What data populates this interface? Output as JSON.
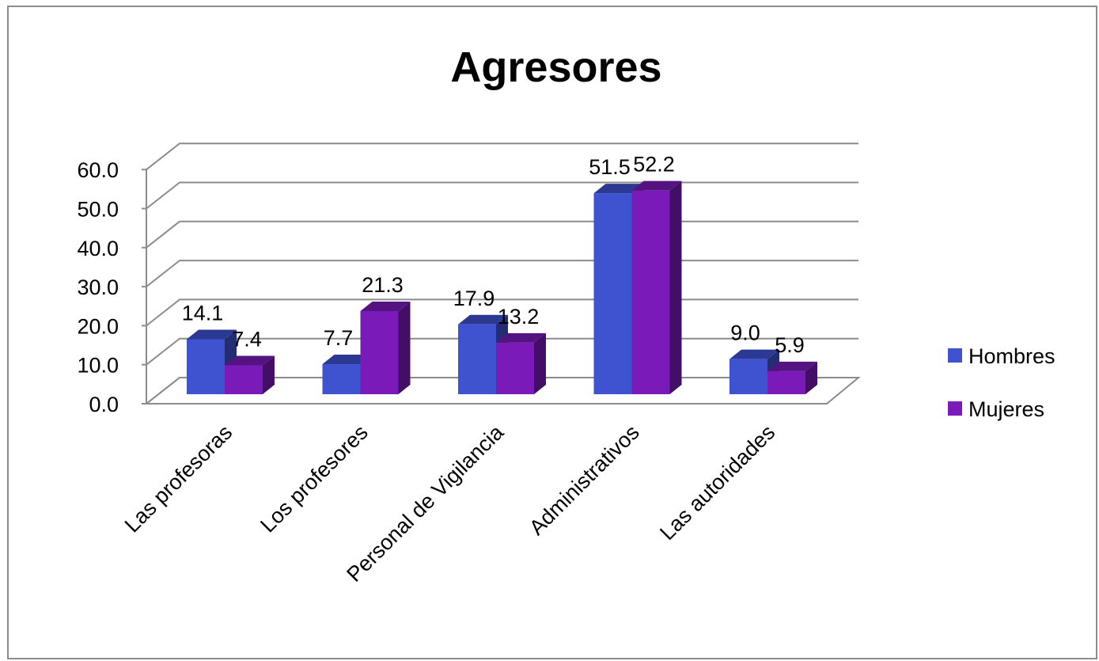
{
  "chart_data": {
    "type": "bar",
    "title": "Agresores",
    "categories": [
      "Las profesoras",
      "Los profesores",
      "Personal de Vigilancia",
      "Administrativos",
      "Las autoridades"
    ],
    "series": [
      {
        "name": "Hombres",
        "values": [
          14.1,
          7.7,
          17.9,
          51.5,
          9.0
        ],
        "color": "#3f52d0",
        "labels": [
          "14.1",
          "7.7",
          "17.9",
          "51.5",
          "9.0"
        ]
      },
      {
        "name": "Mujeres",
        "values": [
          7.4,
          21.3,
          13.2,
          52.2,
          5.9
        ],
        "color": "#7a1ab8",
        "labels": [
          "7.4",
          "21.3",
          "13.2",
          "52.2",
          "5.9"
        ]
      }
    ],
    "y_ticks": [
      "0.0",
      "10.0",
      "20.0",
      "30.0",
      "40.0",
      "50.0",
      "60.0"
    ],
    "ylim": [
      0,
      60
    ],
    "grid": true,
    "legend_position": "right",
    "style": "3d-clustered-column"
  }
}
